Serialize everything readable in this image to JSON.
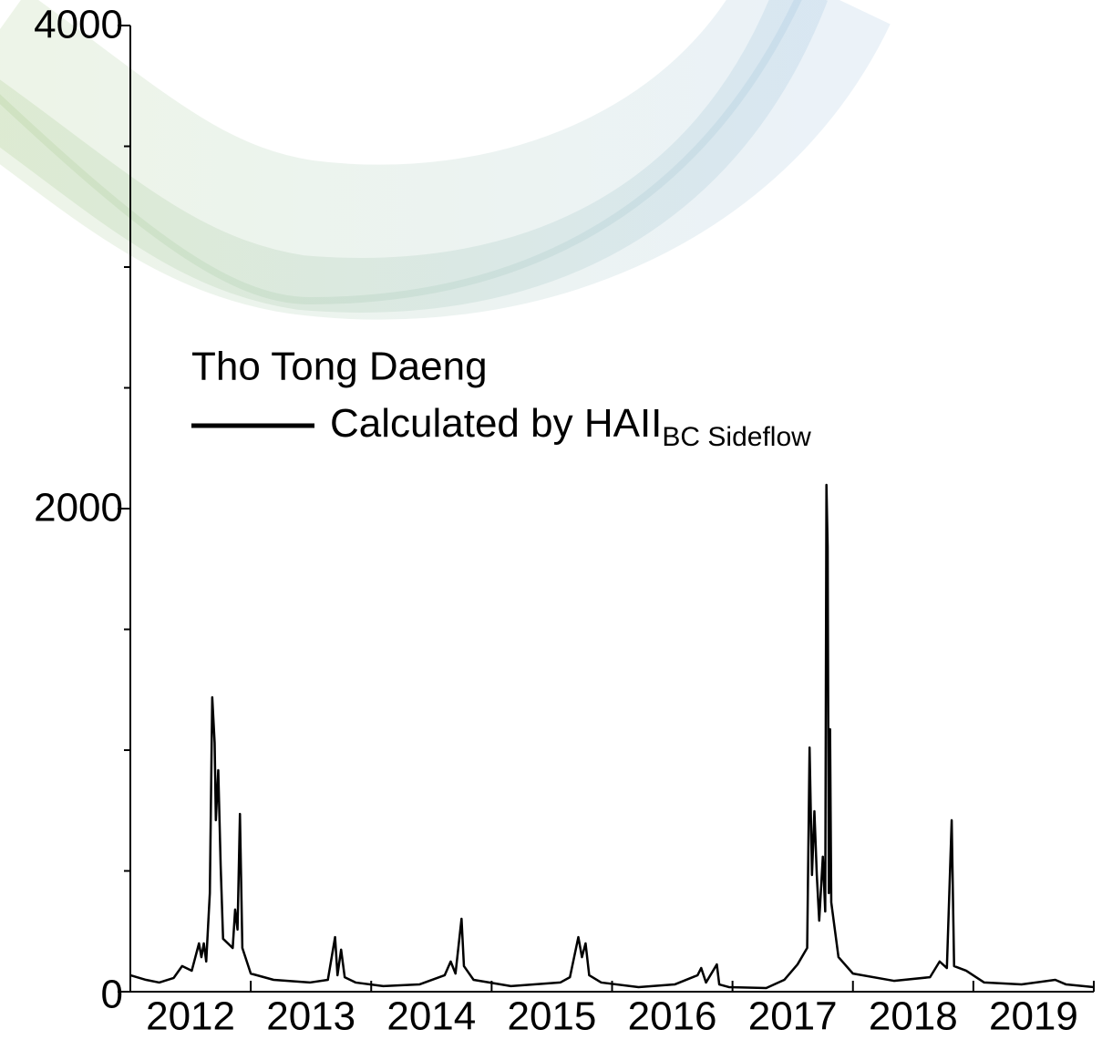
{
  "chart_data": {
    "type": "line",
    "legend_title": "Tho Tong Daeng",
    "series": [
      {
        "name": "Calculated by HAII",
        "name_subscript": "BC Sideflow",
        "color": "#000000",
        "x": [
          2012.0,
          2012.13,
          2012.24,
          2012.36,
          2012.43,
          2012.51,
          2012.57,
          2012.59,
          2012.61,
          2012.63,
          2012.66,
          2012.68,
          2012.7,
          2012.71,
          2012.73,
          2012.75,
          2012.77,
          2012.85,
          2012.87,
          2012.89,
          2012.91,
          2012.93,
          2013.0,
          2013.19,
          2013.49,
          2013.64,
          2013.7,
          2013.72,
          2013.75,
          2013.78,
          2013.87,
          2014.1,
          2014.4,
          2014.61,
          2014.66,
          2014.7,
          2014.75,
          2014.77,
          2014.85,
          2015.16,
          2015.57,
          2015.65,
          2015.72,
          2015.75,
          2015.78,
          2015.81,
          2015.91,
          2016.22,
          2016.52,
          2016.71,
          2016.74,
          2016.78,
          2016.87,
          2016.89,
          2016.97,
          2017.28,
          2017.43,
          2017.54,
          2017.62,
          2017.64,
          2017.66,
          2017.68,
          2017.7,
          2017.72,
          2017.75,
          2017.77,
          2017.78,
          2017.79,
          2017.8,
          2017.81,
          2017.82,
          2017.88,
          2018.0,
          2018.34,
          2018.64,
          2018.72,
          2018.78,
          2018.82,
          2018.84,
          2018.94,
          2019.09,
          2019.4,
          2019.68,
          2019.77,
          2020.0
        ],
        "values": [
          68,
          49,
          38,
          57,
          106,
          87,
          200,
          143,
          200,
          125,
          408,
          1219,
          1030,
          710,
          917,
          521,
          219,
          181,
          340,
          257,
          736,
          181,
          75,
          49,
          38,
          49,
          226,
          68,
          174,
          60,
          38,
          23,
          30,
          68,
          125,
          75,
          302,
          106,
          49,
          23,
          38,
          60,
          226,
          143,
          200,
          68,
          38,
          19,
          30,
          68,
          98,
          38,
          113,
          30,
          19,
          15,
          49,
          113,
          181,
          1011,
          483,
          747,
          483,
          294,
          559,
          332,
          2098,
          1842,
          408,
          1087,
          370,
          143,
          75,
          45,
          60,
          125,
          98,
          710,
          106,
          87,
          38,
          30,
          49,
          30,
          19
        ]
      }
    ],
    "xlim": [
      2012,
      2020
    ],
    "xticks": [
      2013,
      2014,
      2015,
      2016,
      2017,
      2018,
      2019,
      2020
    ],
    "x_labels": [
      "2012",
      "2013",
      "2014",
      "2015",
      "2016",
      "2017",
      "2018",
      "2019"
    ],
    "ylim": [
      0,
      4000
    ],
    "yticks": [
      0,
      2000,
      4000
    ],
    "y_minor_ticks": [
      500,
      1000,
      1500,
      2500,
      3000,
      3500
    ]
  }
}
